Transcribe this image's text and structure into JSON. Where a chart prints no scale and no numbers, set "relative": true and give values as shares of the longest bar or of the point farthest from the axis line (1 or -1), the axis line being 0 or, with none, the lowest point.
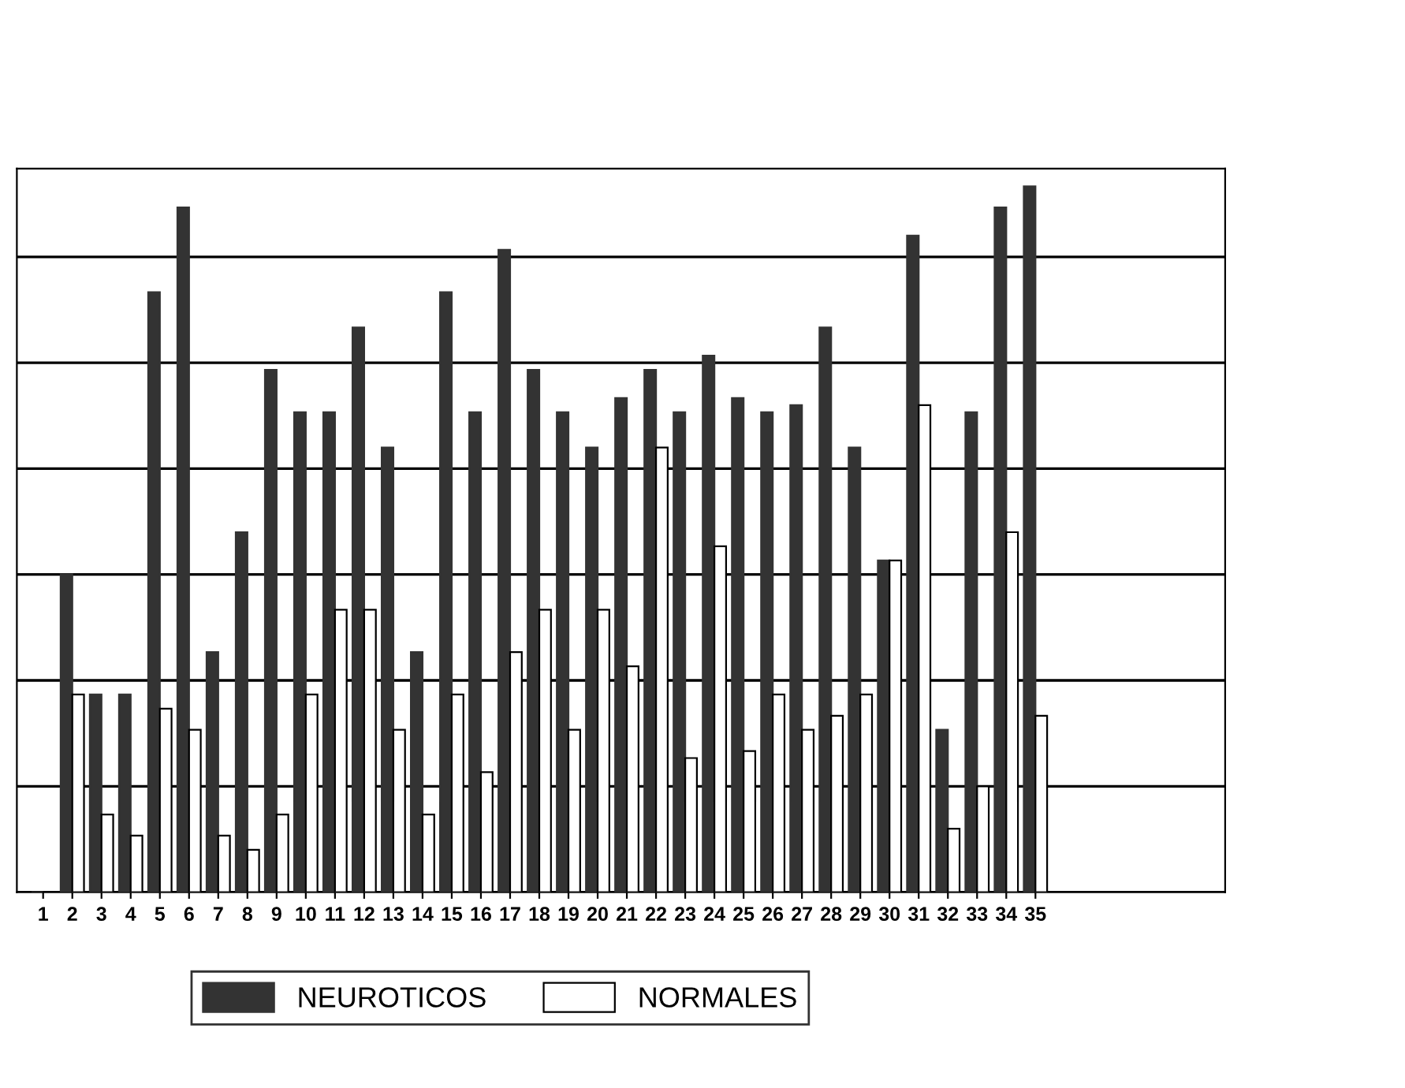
{
  "chart_data": {
    "type": "bar",
    "relative": true,
    "grid": "y",
    "legend": "bottom",
    "categories": [
      "1",
      "2",
      "3",
      "4",
      "5",
      "6",
      "7",
      "8",
      "9",
      "10",
      "11",
      "12",
      "13",
      "14",
      "15",
      "16",
      "17",
      "18",
      "19",
      "20",
      "21",
      "22",
      "23",
      "24",
      "25",
      "26",
      "27",
      "28",
      "29",
      "30",
      "31",
      "32",
      "33",
      "34",
      "35"
    ],
    "series": [
      {
        "name": "NEUROTICOS",
        "color": "#333333",
        "values": [
          null,
          0.45,
          0.28,
          0.28,
          0.85,
          0.97,
          0.34,
          0.51,
          0.74,
          0.68,
          0.68,
          0.8,
          0.63,
          0.34,
          0.85,
          0.68,
          0.91,
          0.74,
          0.68,
          0.63,
          0.7,
          0.74,
          0.68,
          0.76,
          0.7,
          0.68,
          0.69,
          0.8,
          0.63,
          0.47,
          0.93,
          0.23,
          0.68,
          0.97,
          1
        ]
      },
      {
        "name": "NORMALES",
        "color": "#ffffff",
        "values": [
          null,
          0.28,
          0.11,
          0.08,
          0.26,
          0.23,
          0.08,
          0.06,
          0.11,
          0.28,
          0.4,
          0.4,
          0.23,
          0.11,
          0.28,
          0.17,
          0.34,
          0.4,
          0.23,
          0.4,
          0.32,
          0.63,
          0.19,
          0.49,
          0.2,
          0.28,
          0.23,
          0.25,
          0.28,
          0.47,
          0.69,
          0.09,
          0.15,
          0.51,
          0.25
        ]
      }
    ]
  }
}
